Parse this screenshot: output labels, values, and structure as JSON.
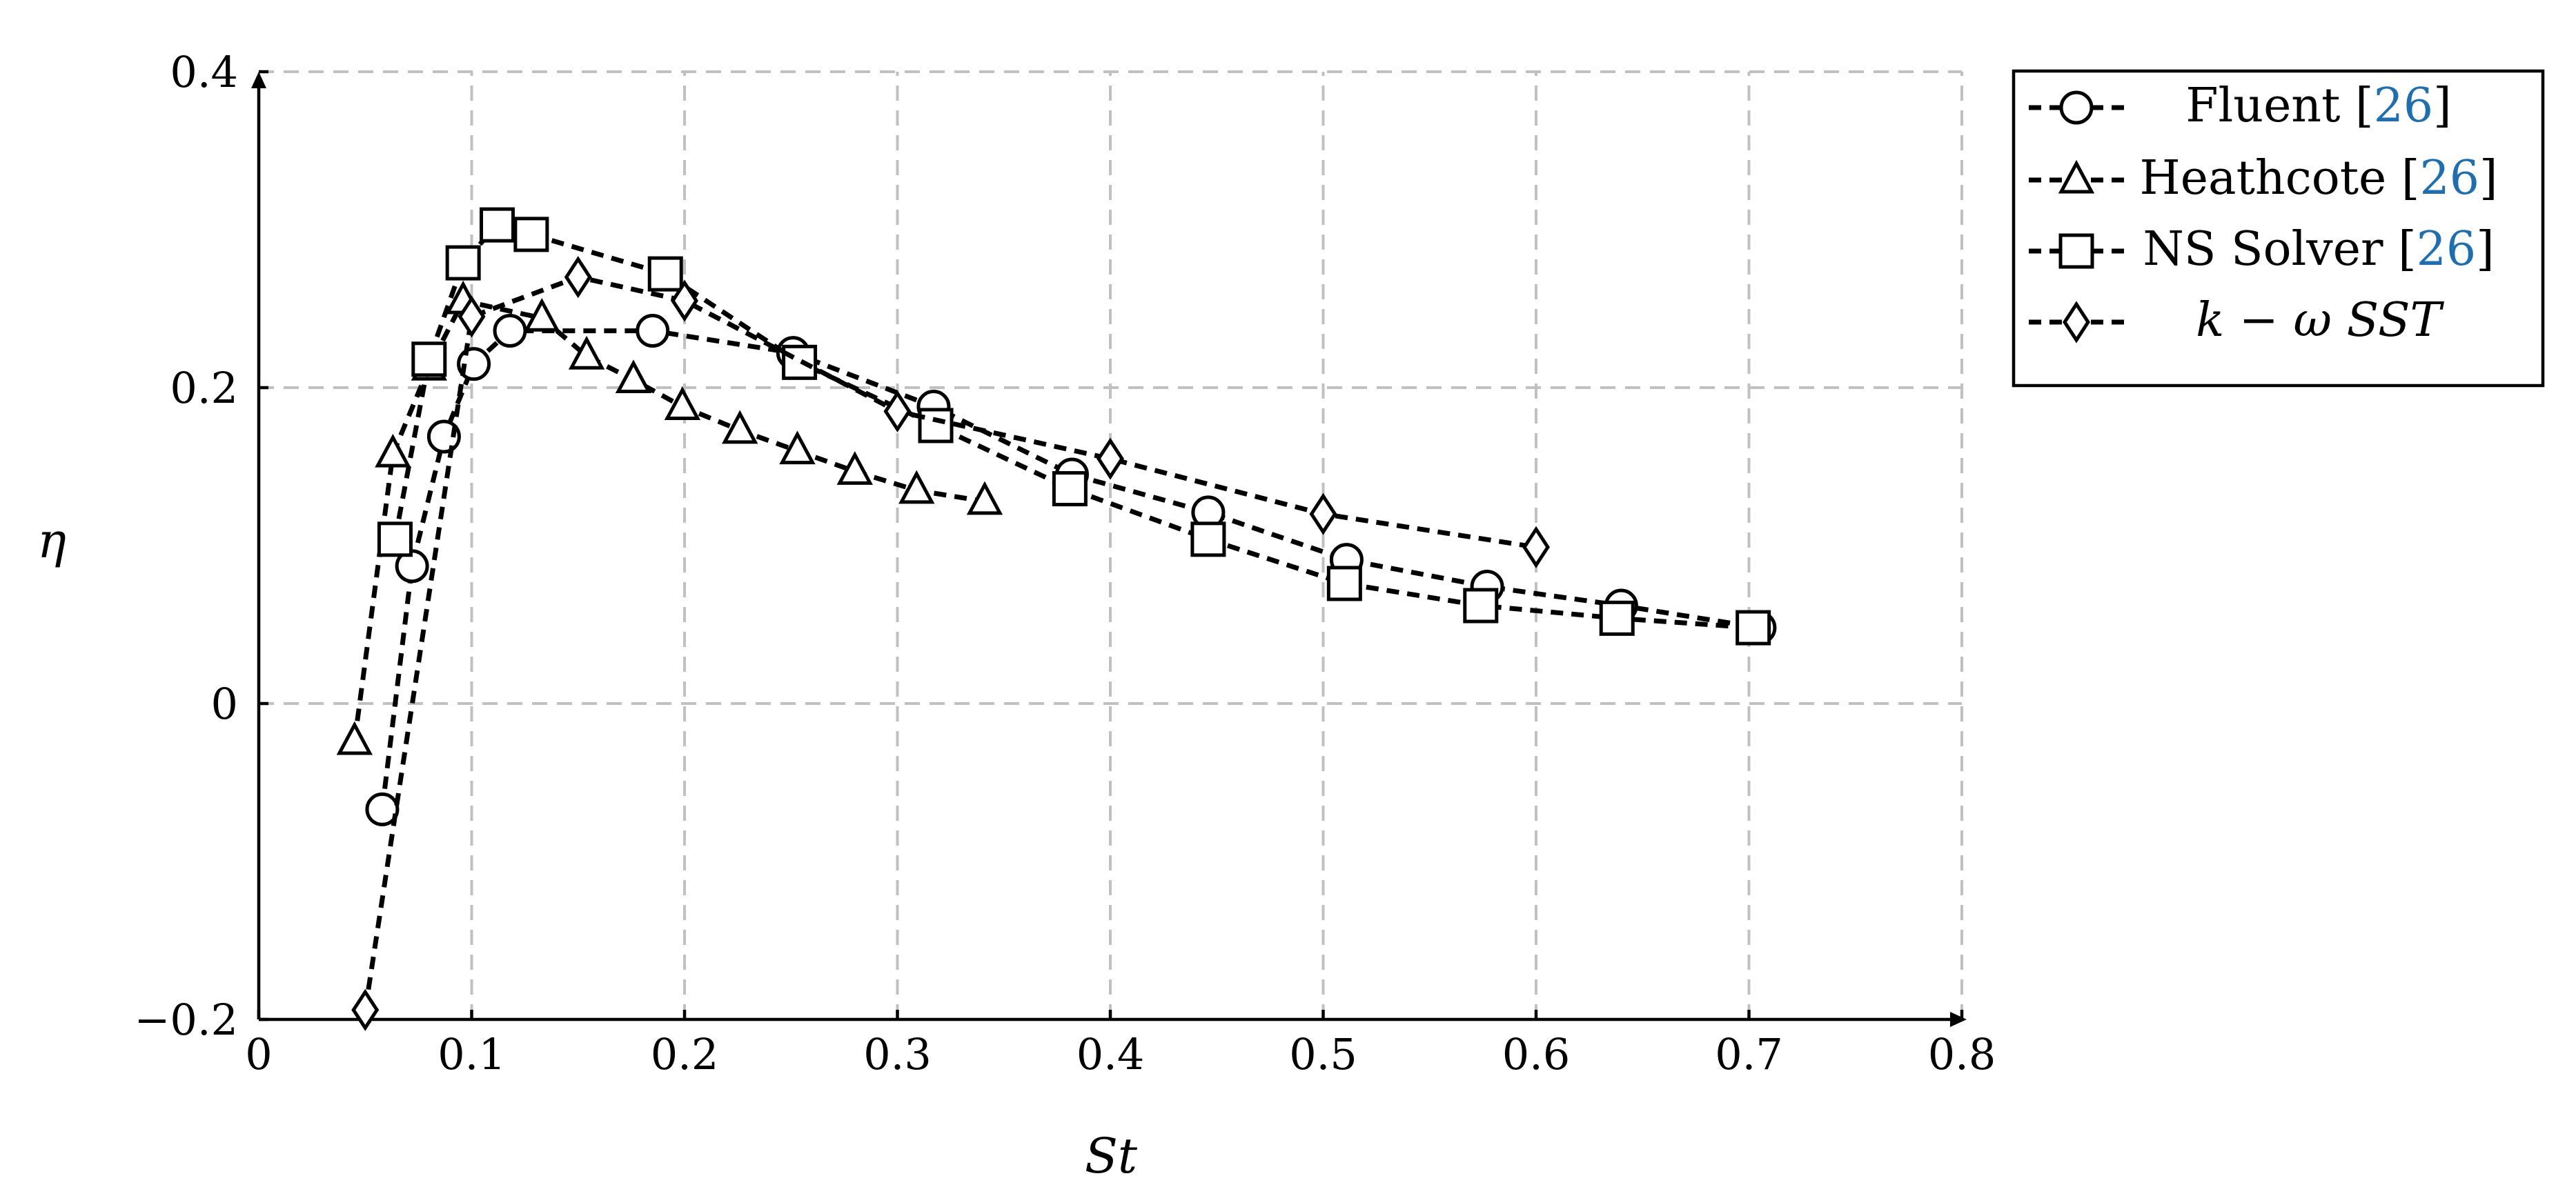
{
  "chart_data": {
    "type": "line",
    "xlabel": "St",
    "ylabel": "η",
    "xlim": [
      0,
      0.8
    ],
    "ylim": [
      -0.2,
      0.4
    ],
    "x_ticks": [
      0,
      0.1,
      0.2,
      0.3,
      0.4,
      0.5,
      0.6,
      0.7,
      0.8
    ],
    "x_tick_labels": [
      "0",
      "0.1",
      "0.2",
      "0.3",
      "0.4",
      "0.5",
      "0.6",
      "0.7",
      "0.8"
    ],
    "y_ticks": [
      -0.2,
      0,
      0.2,
      0.4
    ],
    "y_tick_labels": [
      "−0.2",
      "0",
      "0.2",
      "0.4"
    ],
    "grid": true,
    "legend_position": "outside-right-top",
    "series": [
      {
        "name": "Fluent",
        "ref": "[26]",
        "marker": "circle",
        "x": [
          0.058,
          0.072,
          0.087,
          0.101,
          0.118,
          0.185,
          0.251,
          0.317,
          0.382,
          0.446,
          0.511,
          0.577,
          0.64,
          0.705
        ],
        "y": [
          -0.067,
          0.087,
          0.169,
          0.215,
          0.236,
          0.236,
          0.222,
          0.188,
          0.145,
          0.121,
          0.091,
          0.074,
          0.062,
          0.048
        ]
      },
      {
        "name": "Heathcote",
        "ref": "[26]",
        "marker": "triangle",
        "x": [
          0.045,
          0.063,
          0.08,
          0.096,
          0.133,
          0.154,
          0.176,
          0.199,
          0.226,
          0.253,
          0.28,
          0.309,
          0.341
        ],
        "y": [
          -0.024,
          0.158,
          0.213,
          0.255,
          0.244,
          0.22,
          0.205,
          0.188,
          0.173,
          0.16,
          0.147,
          0.135,
          0.128
        ]
      },
      {
        "name": "NS Solver",
        "ref": "[26]",
        "marker": "square",
        "x": [
          0.064,
          0.08,
          0.096,
          0.112,
          0.128,
          0.191,
          0.254,
          0.318,
          0.381,
          0.446,
          0.51,
          0.574,
          0.638,
          0.702
        ],
        "y": [
          0.104,
          0.218,
          0.279,
          0.303,
          0.297,
          0.272,
          0.216,
          0.176,
          0.136,
          0.104,
          0.076,
          0.062,
          0.054,
          0.048
        ]
      },
      {
        "name": "k − ω SST",
        "ref": "",
        "marker": "diamond",
        "x": [
          0.05,
          0.1,
          0.15,
          0.2,
          0.3,
          0.4,
          0.5,
          0.6
        ],
        "y": [
          -0.194,
          0.245,
          0.27,
          0.255,
          0.185,
          0.155,
          0.12,
          0.099
        ]
      }
    ]
  }
}
